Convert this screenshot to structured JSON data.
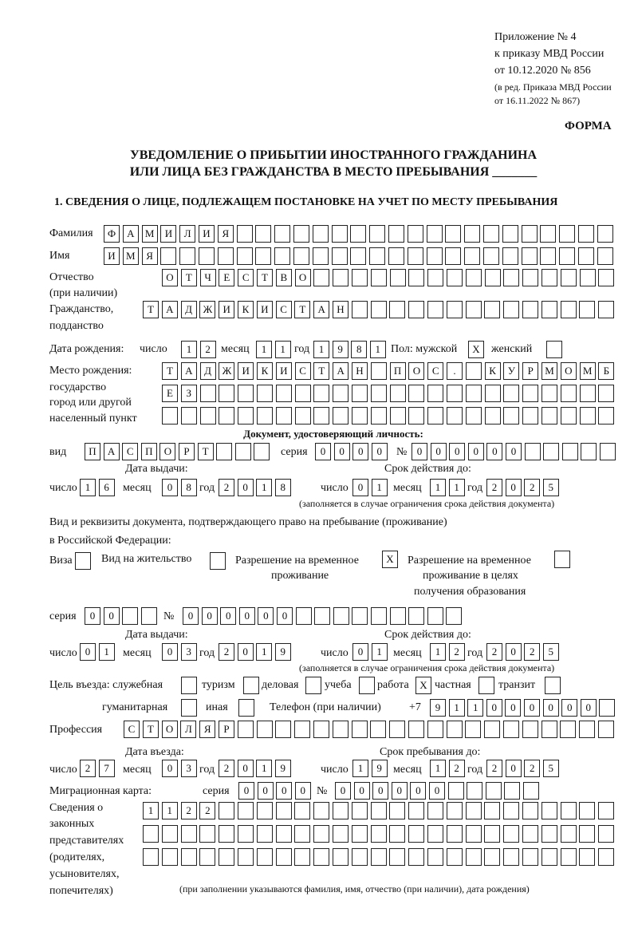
{
  "header": {
    "appendix": "Приложение № 4",
    "order": "к приказу МВД России",
    "order_date": "от 10.12.2020 № 856",
    "revision1": "(в ред. Приказа МВД России",
    "revision2": "от 16.11.2022 № 867)",
    "form": "ФОРМА",
    "title1": "УВЕДОМЛЕНИЕ О ПРИБЫТИИ ИНОСТРАННОГО ГРАЖДАНИНА",
    "title2": "ИЛИ ЛИЦА БЕЗ ГРАЖДАНСТВА В МЕСТО ПРЕБЫВАНИЯ _______",
    "section1": "1. СВЕДЕНИЯ О ЛИЦЕ, ПОДЛЕЖАЩЕМ ПОСТАНОВКЕ НА УЧЕТ ПО МЕСТУ ПРЕБЫВАНИЯ"
  },
  "labels": {
    "surname": "Фамилия",
    "name": "Имя",
    "patronymic": "Отчество",
    "if_any": "(при наличии)",
    "citizenship": "Гражданство,",
    "nationality": "подданство",
    "birth_date": "Дата рождения:",
    "day": "число",
    "month": "месяц",
    "year": "год",
    "sex_male": "Пол: мужской",
    "sex_female": "женский",
    "birthplace": "Место рождения:",
    "state": "государство",
    "city": "город или другой",
    "settlement": "населенный пункт",
    "id_doc": "Документ, удостоверяющий личность:",
    "kind": "вид",
    "series": "серия",
    "number": "№",
    "issue_date": "Дата выдачи:",
    "valid_until": "Срок действия до:",
    "validity_note": "(заполняется в случае ограничения срока действия документа)",
    "right_doc1": "Вид и реквизиты документа, подтверждающего право на пребывание (проживание)",
    "right_doc2": "в Российской Федерации:",
    "visa": "Виза",
    "residence": "Вид на жительство",
    "temp_res1": "Разрешение на временное",
    "temp_res2": "проживание",
    "temp_edu1": "Разрешение на временное",
    "temp_edu2": "проживание в целях",
    "temp_edu3": "получения образования",
    "purpose": "Цель въезда: служебная",
    "tourism": "туризм",
    "business": "деловая",
    "study": "учеба",
    "work": "работа",
    "private": "частная",
    "transit": "транзит",
    "humanitarian": "гуманитарная",
    "other": "иная",
    "phone": "Телефон (при наличии)",
    "phone_prefix": "+7",
    "profession": "Профессия",
    "entry_date": "Дата въезда:",
    "stay_until": "Срок пребывания до:",
    "migration_card": "Миграционная карта:",
    "reps1": "Сведения о",
    "reps2": "законных",
    "reps3": "представителях",
    "reps4": "(родителях,",
    "reps5": "усыновителях,",
    "reps6": "попечителях)",
    "reps_note": "(при заполнении указываются фамилия, имя, отчество (при наличии), дата рождения)"
  },
  "fields": {
    "surname": "ФАМИЛИЯ",
    "name": "ИМЯ",
    "patronymic": "ОТЧЕСТВО",
    "citizenship": "ТАДЖИКИСТАН",
    "birth_day": "12",
    "birth_month": "11",
    "birth_year": "1981",
    "sex_male": "X",
    "sex_female": "",
    "birthplace1": "ТАДЖИКИСТАН ПОС. КУРМОМБ",
    "birthplace2": "ЕЗ",
    "birthplace3": "",
    "id_kind": "ПАСПОРТ",
    "id_series": "0000",
    "id_number": "000000",
    "id_issue_day": "16",
    "id_issue_month": "08",
    "id_issue_year": "2018",
    "id_valid_day": "01",
    "id_valid_month": "11",
    "id_valid_year": "2025",
    "visa": "",
    "residence": "",
    "temp_res": "X",
    "temp_edu": "",
    "rd_series": "00",
    "rd_number": "000000",
    "rd_issue_day": "01",
    "rd_issue_month": "03",
    "rd_issue_year": "2019",
    "rd_valid_day": "01",
    "rd_valid_month": "12",
    "rd_valid_year": "2025",
    "p_service": "",
    "p_tourism": "",
    "p_business": "",
    "p_study": "",
    "p_work": "X",
    "p_private": "",
    "p_transit": "",
    "p_humanitarian": "",
    "p_other": "",
    "phone": "911000000",
    "profession": "СТОЛЯР",
    "entry_day": "27",
    "entry_month": "03",
    "entry_year": "2019",
    "stay_day": "19",
    "stay_month": "12",
    "stay_year": "2025",
    "mc_series": "0000",
    "mc_number": "000000",
    "reps1": "1122",
    "reps2": "",
    "reps3": ""
  }
}
